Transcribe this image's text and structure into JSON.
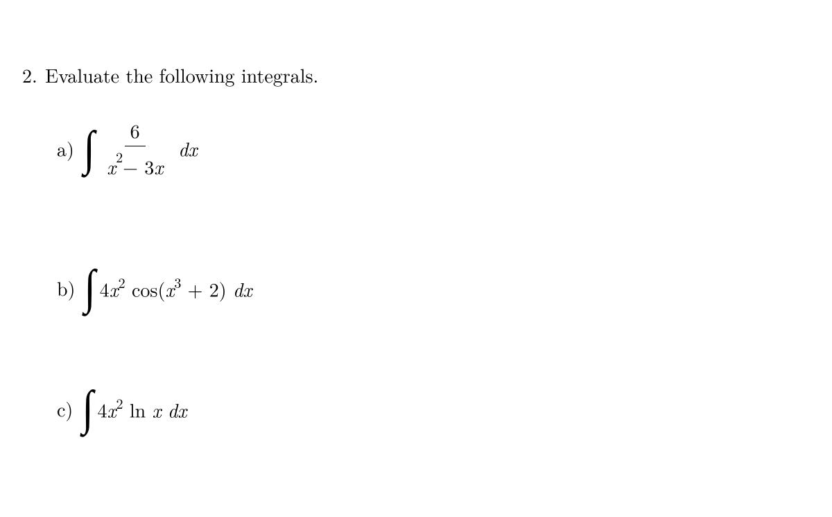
{
  "problem": {
    "number": "2.",
    "text": "Evaluate the following integrals."
  },
  "parts": {
    "a": {
      "label": "a)",
      "numerator": "6",
      "denom_x": "x",
      "denom_exp": "2",
      "denom_minus": " − 3",
      "denom_x2": "x",
      "dx_d": "d",
      "dx_x": "x"
    },
    "b": {
      "label": "b)",
      "coef": "4",
      "x1": "x",
      "exp1": "2",
      "cos": " cos(",
      "x2": "x",
      "exp2": "3",
      "plus": " + 2) ",
      "dx_d": "d",
      "dx_x": "x"
    },
    "c": {
      "label": "c)",
      "coef": "4",
      "x1": "x",
      "exp1": "2",
      "ln": " ln ",
      "x2": "x",
      "space": " ",
      "dx_d": "d",
      "dx_x": "x"
    }
  },
  "colors": {
    "background": "#ffffff",
    "text": "#000000"
  }
}
